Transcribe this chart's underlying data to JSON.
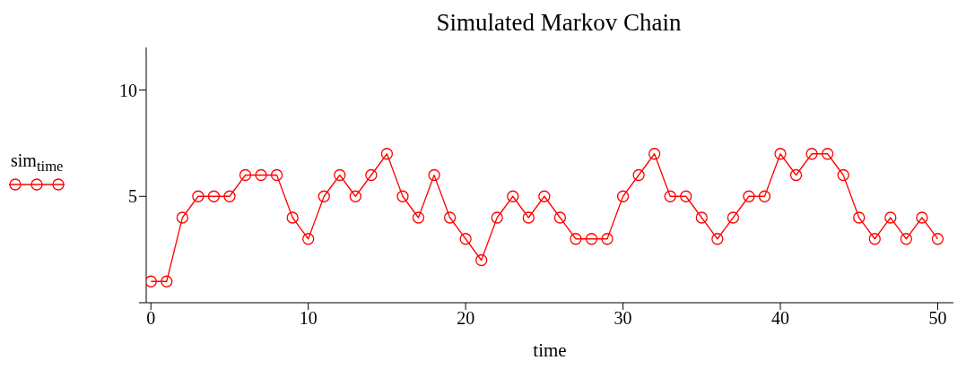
{
  "chart_data": {
    "type": "line",
    "title": "Simulated Markov Chain",
    "xlabel": "time",
    "x": [
      0,
      1,
      2,
      3,
      4,
      5,
      6,
      7,
      8,
      9,
      10,
      11,
      12,
      13,
      14,
      15,
      16,
      17,
      18,
      19,
      20,
      21,
      22,
      23,
      24,
      25,
      26,
      27,
      28,
      29,
      30,
      31,
      32,
      33,
      34,
      35,
      36,
      37,
      38,
      39,
      40,
      41,
      42,
      43,
      44,
      45,
      46,
      47,
      48,
      49,
      50
    ],
    "series": [
      {
        "name": "sim$_{time}$",
        "color": "#ff0000",
        "values": [
          1,
          1,
          4,
          5,
          5,
          5,
          6,
          6,
          6,
          4,
          3,
          5,
          6,
          5,
          6,
          7,
          5,
          4,
          6,
          4,
          3,
          2,
          4,
          5,
          4,
          5,
          4,
          3,
          3,
          3,
          5,
          6,
          7,
          5,
          5,
          4,
          3,
          4,
          5,
          5,
          7,
          6,
          7,
          7,
          6,
          4,
          3,
          4,
          3,
          4,
          3
        ]
      }
    ],
    "xlim": [
      -0.3,
      51
    ],
    "xticks": [
      0,
      10,
      20,
      30,
      40,
      50
    ],
    "ylim": [
      0,
      12
    ],
    "yticks": [
      {
        "value": 0,
        "label": null
      },
      5,
      10
    ],
    "grid": false,
    "legend": "left",
    "marker": "circle",
    "line_style": "solid"
  }
}
